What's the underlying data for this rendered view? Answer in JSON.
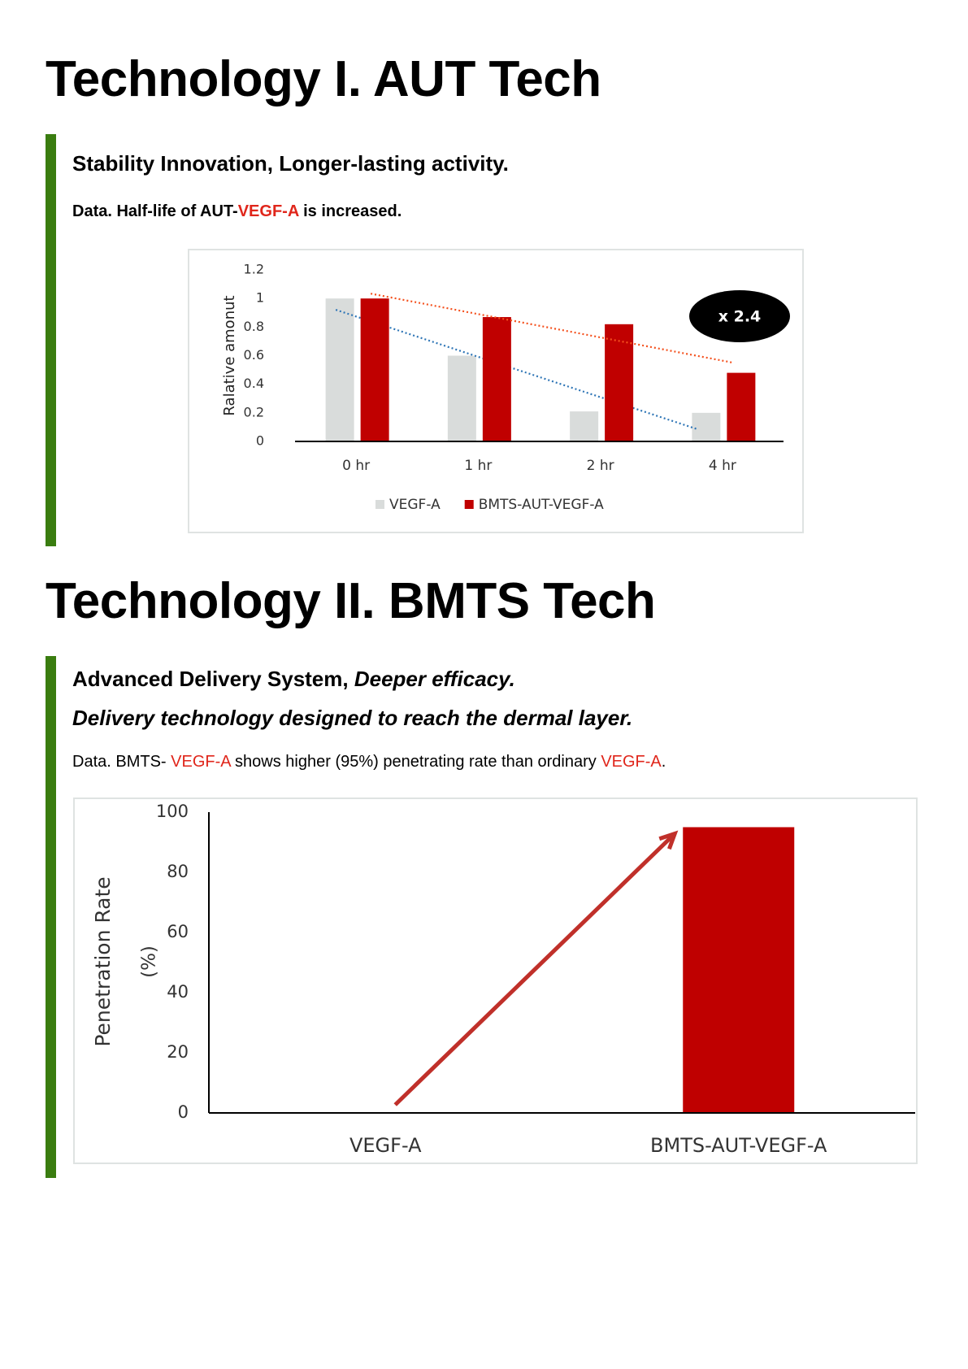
{
  "sections": [
    {
      "title": "Technology I. AUT Tech",
      "heading": "Stability Innovation, Longer-lasting activity.",
      "data_text": [
        "Data. Half-life of AUT-",
        "VEGF-A",
        " is increased."
      ]
    },
    {
      "title": "Technology II. BMTS Tech",
      "heading": [
        "Advanced Delivery System, ",
        "Deeper efficacy."
      ],
      "subheading": "Delivery technology designed to reach the dermal layer.",
      "data_text": [
        "Data. BMTS- ",
        "VEGF-A",
        " shows higher (95%) penetrating rate than ordinary ",
        "VEGF-A",
        "."
      ]
    }
  ],
  "chart_data": [
    {
      "type": "bar",
      "categories": [
        "0 hr",
        "1 hr",
        "2 hr",
        "4 hr"
      ],
      "series": [
        {
          "name": "VEGF-A",
          "color": "#d9dcdb",
          "trendline_color": "#2e75b6",
          "values": [
            1,
            0.6,
            0.21,
            0.2
          ]
        },
        {
          "name": "BMTS-AUT-VEGF-A",
          "color": "#c00000",
          "trendline_color": "#f4511e",
          "values": [
            1,
            0.87,
            0.82,
            0.48
          ]
        }
      ],
      "y_label": "Ralative amonut",
      "annotation": "x 2.4",
      "ylim": [
        0,
        1.2
      ],
      "yticks": [
        0,
        0.2,
        0.4,
        0.6,
        0.8,
        1,
        1.2
      ],
      "legend": "bottom"
    },
    {
      "type": "bar",
      "categories": [
        "VEGF-A",
        "BMTS-AUT-VEGF-A"
      ],
      "values": [
        0,
        95
      ],
      "color": "#bf0000",
      "arrow_color": "#c0302a",
      "y_label": [
        "Penetration Rate",
        "(%)"
      ],
      "ylim": [
        0,
        100
      ],
      "yticks": [
        0,
        20,
        40,
        60,
        80,
        100
      ]
    }
  ]
}
